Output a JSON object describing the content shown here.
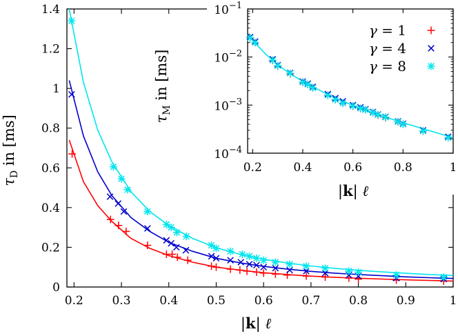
{
  "chart_data": [
    {
      "type": "scatter",
      "title": "",
      "xlabel": "|k| ℓ",
      "ylabel": "τ_D in [ms]",
      "xlim": [
        0.185,
        1.0
      ],
      "ylim": [
        0,
        1.4
      ],
      "xticks": [
        "0.2",
        "0.3",
        "0.4",
        "0.5",
        "0.6",
        "0.7",
        "0.8",
        "0.9",
        "1"
      ],
      "yticks": [
        "0",
        "0.2",
        "0.4",
        "0.6",
        "0.8",
        "1",
        "1.2",
        "1.4"
      ],
      "grid": false,
      "series": [
        {
          "name": "γ = 1",
          "color": "#ff0000",
          "marker": "plus",
          "x": [
            0.196,
            0.277,
            0.294,
            0.31,
            0.355,
            0.395,
            0.407,
            0.418,
            0.44,
            0.49,
            0.5,
            0.53,
            0.55,
            0.565,
            0.585,
            0.6,
            0.625,
            0.65,
            0.69,
            0.73,
            0.78,
            0.8,
            0.88,
            0.98
          ],
          "y": [
            0.67,
            0.34,
            0.31,
            0.28,
            0.21,
            0.165,
            0.165,
            0.15,
            0.135,
            0.105,
            0.1,
            0.09,
            0.085,
            0.08,
            0.075,
            0.07,
            0.065,
            0.06,
            0.055,
            0.05,
            0.045,
            0.04,
            0.035,
            0.03
          ],
          "curve_x": [
            0.19,
            0.22,
            0.25,
            0.28,
            0.32,
            0.36,
            0.4,
            0.45,
            0.5,
            0.55,
            0.6,
            0.65,
            0.7,
            0.75,
            0.8,
            0.85,
            0.9,
            0.95,
            1.0
          ],
          "curve_y": [
            0.74,
            0.53,
            0.41,
            0.33,
            0.245,
            0.195,
            0.158,
            0.125,
            0.1,
            0.085,
            0.072,
            0.063,
            0.055,
            0.049,
            0.044,
            0.04,
            0.036,
            0.033,
            0.03
          ]
        },
        {
          "name": "γ = 4",
          "color": "#0000cc",
          "marker": "cross",
          "x": [
            0.195,
            0.276,
            0.293,
            0.305,
            0.355,
            0.395,
            0.405,
            0.416,
            0.436,
            0.49,
            0.5,
            0.53,
            0.552,
            0.57,
            0.585,
            0.6,
            0.625,
            0.655,
            0.69,
            0.73,
            0.78,
            0.8,
            0.88,
            0.98
          ],
          "y": [
            0.97,
            0.455,
            0.42,
            0.38,
            0.295,
            0.235,
            0.22,
            0.2,
            0.185,
            0.155,
            0.145,
            0.135,
            0.125,
            0.115,
            0.11,
            0.1,
            0.095,
            0.085,
            0.08,
            0.07,
            0.06,
            0.055,
            0.045,
            0.04
          ],
          "curve_x": [
            0.19,
            0.22,
            0.25,
            0.28,
            0.32,
            0.36,
            0.4,
            0.45,
            0.5,
            0.55,
            0.6,
            0.65,
            0.7,
            0.75,
            0.8,
            0.85,
            0.9,
            0.95,
            1.0
          ],
          "curve_y": [
            1.04,
            0.76,
            0.58,
            0.46,
            0.35,
            0.28,
            0.225,
            0.18,
            0.145,
            0.122,
            0.104,
            0.09,
            0.079,
            0.07,
            0.063,
            0.057,
            0.051,
            0.047,
            0.043
          ]
        },
        {
          "name": "γ = 8",
          "color": "#00e5ee",
          "marker": "star",
          "x": [
            0.195,
            0.283,
            0.3,
            0.313,
            0.355,
            0.395,
            0.405,
            0.417,
            0.437,
            0.49,
            0.5,
            0.53,
            0.555,
            0.57,
            0.585,
            0.6,
            0.625,
            0.655,
            0.69,
            0.73,
            0.78,
            0.8,
            0.88,
            0.98
          ],
          "y": [
            1.34,
            0.605,
            0.545,
            0.49,
            0.38,
            0.315,
            0.3,
            0.275,
            0.255,
            0.21,
            0.195,
            0.18,
            0.165,
            0.155,
            0.145,
            0.135,
            0.125,
            0.115,
            0.105,
            0.095,
            0.08,
            0.075,
            0.06,
            0.05
          ],
          "curve_x": [
            0.19,
            0.22,
            0.25,
            0.28,
            0.32,
            0.36,
            0.4,
            0.45,
            0.5,
            0.55,
            0.6,
            0.65,
            0.7,
            0.75,
            0.8,
            0.85,
            0.9,
            0.95,
            1.0
          ],
          "curve_y": [
            1.4,
            1.03,
            0.79,
            0.63,
            0.48,
            0.38,
            0.31,
            0.245,
            0.198,
            0.165,
            0.14,
            0.121,
            0.106,
            0.094,
            0.084,
            0.076,
            0.069,
            0.063,
            0.058
          ]
        }
      ]
    },
    {
      "type": "scatter",
      "title": "",
      "inset": true,
      "xlabel": "|k| ℓ",
      "ylabel": "τ_M in [ms]",
      "xlim": [
        0.18,
        1.0
      ],
      "ylim": [
        0.0001,
        0.1
      ],
      "yscale": "log",
      "xticks": [
        "0.2",
        "0.4",
        "0.6",
        "0.8",
        "1"
      ],
      "yticks": [
        "10^-4",
        "10^-3",
        "10^-2",
        "10^-1"
      ],
      "legend": "top-right",
      "series": [
        {
          "name": "γ = 1",
          "color": "#ff0000",
          "marker": "plus",
          "x": [
            0.19,
            0.21,
            0.28,
            0.3,
            0.35,
            0.4,
            0.42,
            0.44,
            0.5,
            0.53,
            0.56,
            0.6,
            0.63,
            0.65,
            0.68,
            0.7,
            0.73,
            0.78,
            0.8,
            0.88,
            0.98
          ],
          "y": [
            0.025,
            0.02,
            0.0085,
            0.0065,
            0.0045,
            0.003,
            0.0027,
            0.0023,
            0.0016,
            0.0013,
            0.0011,
            0.00095,
            0.00085,
            0.0008,
            0.0007,
            0.00062,
            0.00055,
            0.00045,
            0.0004,
            0.00029,
            0.00021
          ]
        },
        {
          "name": "γ = 4",
          "color": "#0000cc",
          "marker": "cross",
          "x": [
            0.19,
            0.21,
            0.28,
            0.3,
            0.35,
            0.4,
            0.42,
            0.44,
            0.5,
            0.53,
            0.56,
            0.6,
            0.63,
            0.65,
            0.68,
            0.7,
            0.73,
            0.78,
            0.8,
            0.88,
            0.98
          ],
          "y": [
            0.026,
            0.021,
            0.009,
            0.0068,
            0.0047,
            0.0031,
            0.0028,
            0.0024,
            0.0017,
            0.0014,
            0.0012,
            0.001,
            0.0009,
            0.00082,
            0.00072,
            0.00064,
            0.00057,
            0.00046,
            0.00041,
            0.0003,
            0.00022
          ]
        },
        {
          "name": "γ = 8",
          "color": "#00e5ee",
          "marker": "star",
          "x": [
            0.19,
            0.21,
            0.28,
            0.3,
            0.35,
            0.4,
            0.42,
            0.44,
            0.5,
            0.53,
            0.56,
            0.6,
            0.63,
            0.65,
            0.68,
            0.7,
            0.73,
            0.78,
            0.8,
            0.88,
            0.98
          ],
          "y": [
            0.025,
            0.02,
            0.0086,
            0.0066,
            0.0046,
            0.003,
            0.0027,
            0.0023,
            0.0016,
            0.0013,
            0.0011,
            0.00096,
            0.00086,
            0.0008,
            0.0007,
            0.00063,
            0.00056,
            0.00045,
            0.0004,
            0.00029,
            0.00021
          ],
          "curve_x": [
            0.18,
            0.2,
            0.25,
            0.3,
            0.35,
            0.4,
            0.5,
            0.6,
            0.7,
            0.8,
            0.9,
            1.0
          ],
          "curve_y": [
            0.03,
            0.022,
            0.0118,
            0.0069,
            0.0045,
            0.0031,
            0.00165,
            0.00098,
            0.00063,
            0.00043,
            0.0003,
            0.00021
          ]
        }
      ]
    }
  ]
}
